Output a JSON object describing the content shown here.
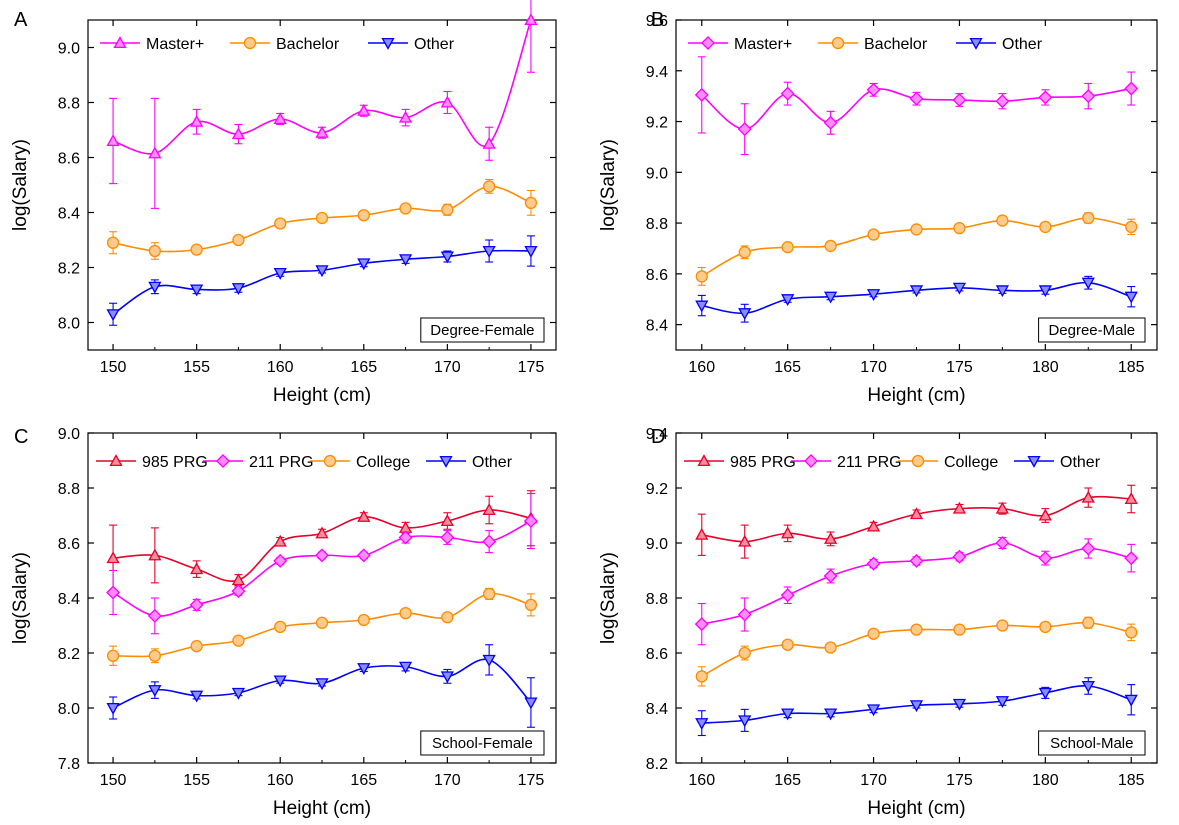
{
  "colors": {
    "master": "#ff00ff",
    "bachelor": "#ff8c00",
    "other": "#0000ff",
    "prg985": "#e8002a",
    "prg211": "#ff00ff",
    "college": "#ff8c00"
  },
  "chart_data": [
    {
      "panel": "A",
      "type": "line",
      "box_label": "Degree-Female",
      "xlabel": "Height (cm)",
      "ylabel": "log(Salary)",
      "xlim": [
        148.5,
        176.5
      ],
      "ylim": [
        7.9,
        9.1
      ],
      "xticks": [
        "150",
        "155",
        "160",
        "165",
        "170",
        "175"
      ],
      "yticks": [
        "8.0",
        "8.2",
        "8.4",
        "8.6",
        "8.8",
        "9.0"
      ],
      "legend": "top-left",
      "x": [
        150,
        152.5,
        155,
        157.5,
        160,
        162.5,
        165,
        167.5,
        170,
        172.5,
        175
      ],
      "series": [
        {
          "name": "Master+",
          "color_key": "master",
          "marker": "triangle-up",
          "values": [
            8.66,
            8.615,
            8.73,
            8.685,
            8.74,
            8.69,
            8.77,
            8.745,
            8.8,
            8.65,
            9.1
          ],
          "errors": [
            0.155,
            0.2,
            0.045,
            0.035,
            0.02,
            0.02,
            0.02,
            0.03,
            0.04,
            0.06,
            0.19
          ]
        },
        {
          "name": "Bachelor",
          "color_key": "bachelor",
          "marker": "circle",
          "values": [
            8.29,
            8.26,
            8.265,
            8.3,
            8.36,
            8.38,
            8.39,
            8.415,
            8.41,
            8.495,
            8.435
          ],
          "errors": [
            0.04,
            0.03,
            0.015,
            0.015,
            0.012,
            0.01,
            0.012,
            0.015,
            0.02,
            0.025,
            0.045
          ]
        },
        {
          "name": "Other",
          "color_key": "other",
          "marker": "triangle-down",
          "values": [
            8.03,
            8.13,
            8.12,
            8.125,
            8.18,
            8.19,
            8.215,
            8.23,
            8.24,
            8.26,
            8.26
          ],
          "errors": [
            0.04,
            0.025,
            0.015,
            0.015,
            0.012,
            0.01,
            0.012,
            0.015,
            0.02,
            0.04,
            0.055
          ]
        }
      ]
    },
    {
      "panel": "B",
      "type": "line",
      "box_label": "Degree-Male",
      "xlabel": "Height (cm)",
      "ylabel": "log(Salary)",
      "xlim": [
        158.5,
        186.5
      ],
      "ylim": [
        8.3,
        9.6
      ],
      "xticks": [
        "160",
        "165",
        "170",
        "175",
        "180",
        "185"
      ],
      "yticks": [
        "8.4",
        "8.6",
        "8.8",
        "9.0",
        "9.2",
        "9.4",
        "9.6"
      ],
      "legend": "top-left",
      "x": [
        160,
        162.5,
        165,
        167.5,
        170,
        172.5,
        175,
        177.5,
        180,
        182.5,
        185
      ],
      "series": [
        {
          "name": "Master+",
          "color_key": "master",
          "marker": "diamond",
          "values": [
            9.305,
            9.17,
            9.31,
            9.195,
            9.325,
            9.29,
            9.285,
            9.28,
            9.295,
            9.3,
            9.33
          ],
          "errors": [
            0.15,
            0.1,
            0.045,
            0.045,
            0.025,
            0.025,
            0.025,
            0.03,
            0.03,
            0.05,
            0.065
          ]
        },
        {
          "name": "Bachelor",
          "color_key": "bachelor",
          "marker": "circle",
          "values": [
            8.59,
            8.685,
            8.705,
            8.71,
            8.755,
            8.775,
            8.78,
            8.81,
            8.785,
            8.82,
            8.785
          ],
          "errors": [
            0.035,
            0.025,
            0.015,
            0.012,
            0.01,
            0.01,
            0.01,
            0.012,
            0.015,
            0.02,
            0.03
          ]
        },
        {
          "name": "Other",
          "color_key": "other",
          "marker": "triangle-down",
          "values": [
            8.475,
            8.445,
            8.5,
            8.51,
            8.52,
            8.535,
            8.545,
            8.535,
            8.535,
            8.565,
            8.51
          ],
          "errors": [
            0.04,
            0.035,
            0.012,
            0.012,
            0.01,
            0.01,
            0.012,
            0.012,
            0.015,
            0.025,
            0.04
          ]
        }
      ]
    },
    {
      "panel": "C",
      "type": "line",
      "box_label": "School-Female",
      "xlabel": "Height (cm)",
      "ylabel": "log(Salary)",
      "xlim": [
        148.5,
        176.5
      ],
      "ylim": [
        7.8,
        9.0
      ],
      "xticks": [
        "150",
        "155",
        "160",
        "165",
        "170",
        "175"
      ],
      "yticks": [
        "7.8",
        "8.0",
        "8.2",
        "8.4",
        "8.6",
        "8.8",
        "9.0"
      ],
      "legend": "top-left",
      "x": [
        150,
        152.5,
        155,
        157.5,
        160,
        162.5,
        165,
        167.5,
        170,
        172.5,
        175
      ],
      "series": [
        {
          "name": "985 PRG",
          "color_key": "prg985",
          "marker": "triangle-up",
          "values": [
            8.545,
            8.555,
            8.505,
            8.465,
            8.605,
            8.635,
            8.695,
            8.655,
            8.68,
            8.72,
            8.69
          ],
          "errors": [
            0.12,
            0.1,
            0.03,
            0.02,
            0.015,
            0.015,
            0.015,
            0.02,
            0.03,
            0.05,
            0.1
          ]
        },
        {
          "name": "211 PRG",
          "color_key": "prg211",
          "marker": "diamond",
          "values": [
            8.42,
            8.335,
            8.375,
            8.425,
            8.535,
            8.555,
            8.555,
            8.62,
            8.62,
            8.605,
            8.68
          ],
          "errors": [
            0.08,
            0.065,
            0.02,
            0.015,
            0.012,
            0.012,
            0.012,
            0.02,
            0.025,
            0.04,
            0.1
          ]
        },
        {
          "name": "College",
          "color_key": "college",
          "marker": "circle",
          "values": [
            8.19,
            8.19,
            8.225,
            8.245,
            8.295,
            8.31,
            8.32,
            8.345,
            8.33,
            8.415,
            8.375
          ],
          "errors": [
            0.035,
            0.025,
            0.012,
            0.01,
            0.01,
            0.01,
            0.01,
            0.012,
            0.015,
            0.02,
            0.04
          ]
        },
        {
          "name": "Other",
          "color_key": "other",
          "marker": "triangle-down",
          "values": [
            8.0,
            8.065,
            8.045,
            8.055,
            8.1,
            8.09,
            8.145,
            8.15,
            8.115,
            8.175,
            8.02
          ],
          "errors": [
            0.04,
            0.03,
            0.012,
            0.01,
            0.01,
            0.01,
            0.012,
            0.015,
            0.025,
            0.055,
            0.09
          ]
        }
      ]
    },
    {
      "panel": "D",
      "type": "line",
      "box_label": "School-Male",
      "xlabel": "Height (cm)",
      "ylabel": "log(Salary)",
      "xlim": [
        158.5,
        186.5
      ],
      "ylim": [
        8.2,
        9.4
      ],
      "xticks": [
        "160",
        "165",
        "170",
        "175",
        "180",
        "185"
      ],
      "yticks": [
        "8.2",
        "8.4",
        "8.6",
        "8.8",
        "9.0",
        "9.2",
        "9.4"
      ],
      "legend": "top-left",
      "x": [
        160,
        162.5,
        165,
        167.5,
        170,
        172.5,
        175,
        177.5,
        180,
        182.5,
        185
      ],
      "series": [
        {
          "name": "985 PRG",
          "color_key": "prg985",
          "marker": "triangle-up",
          "values": [
            9.03,
            9.005,
            9.035,
            9.015,
            9.06,
            9.105,
            9.125,
            9.125,
            9.1,
            9.165,
            9.16
          ],
          "errors": [
            0.075,
            0.06,
            0.03,
            0.025,
            0.015,
            0.015,
            0.015,
            0.02,
            0.025,
            0.035,
            0.05
          ]
        },
        {
          "name": "211 PRG",
          "color_key": "prg211",
          "marker": "diamond",
          "values": [
            8.705,
            8.74,
            8.81,
            8.88,
            8.925,
            8.935,
            8.95,
            9.0,
            8.945,
            8.98,
            8.945
          ],
          "errors": [
            0.075,
            0.06,
            0.03,
            0.025,
            0.015,
            0.015,
            0.015,
            0.02,
            0.025,
            0.035,
            0.05
          ]
        },
        {
          "name": "College",
          "color_key": "college",
          "marker": "circle",
          "values": [
            8.515,
            8.6,
            8.63,
            8.62,
            8.67,
            8.685,
            8.685,
            8.7,
            8.695,
            8.71,
            8.675
          ],
          "errors": [
            0.035,
            0.025,
            0.012,
            0.01,
            0.01,
            0.01,
            0.01,
            0.012,
            0.012,
            0.02,
            0.03
          ]
        },
        {
          "name": "Other",
          "color_key": "other",
          "marker": "triangle-down",
          "values": [
            8.345,
            8.355,
            8.38,
            8.38,
            8.395,
            8.41,
            8.415,
            8.425,
            8.455,
            8.48,
            8.43
          ],
          "errors": [
            0.045,
            0.04,
            0.015,
            0.012,
            0.012,
            0.01,
            0.012,
            0.015,
            0.02,
            0.03,
            0.055
          ]
        }
      ]
    }
  ]
}
